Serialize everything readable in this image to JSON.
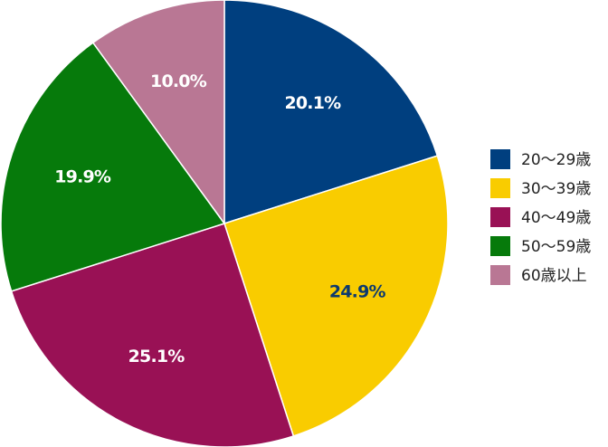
{
  "chart_data": {
    "type": "pie",
    "title": "",
    "start_angle_deg": 0,
    "direction": "clockwise",
    "legend_position": "right",
    "slices": [
      {
        "label": "20〜29歳",
        "value": 20.1,
        "value_label": "20.1%",
        "color": "#003f7f",
        "label_color": "#ffffff"
      },
      {
        "label": "30〜39歳",
        "value": 24.9,
        "value_label": "24.9%",
        "color": "#f9cc00",
        "label_color": "#0d3a6e"
      },
      {
        "label": "40〜49歳",
        "value": 25.1,
        "value_label": "25.1%",
        "color": "#991155",
        "label_color": "#ffffff"
      },
      {
        "label": "50〜59歳",
        "value": 19.9,
        "value_label": "19.9%",
        "color": "#067a0b",
        "label_color": "#ffffff"
      },
      {
        "label": "60歳以上",
        "value": 10.0,
        "value_label": "10.0%",
        "color": "#b97794",
        "label_color": "#ffffff"
      }
    ]
  }
}
